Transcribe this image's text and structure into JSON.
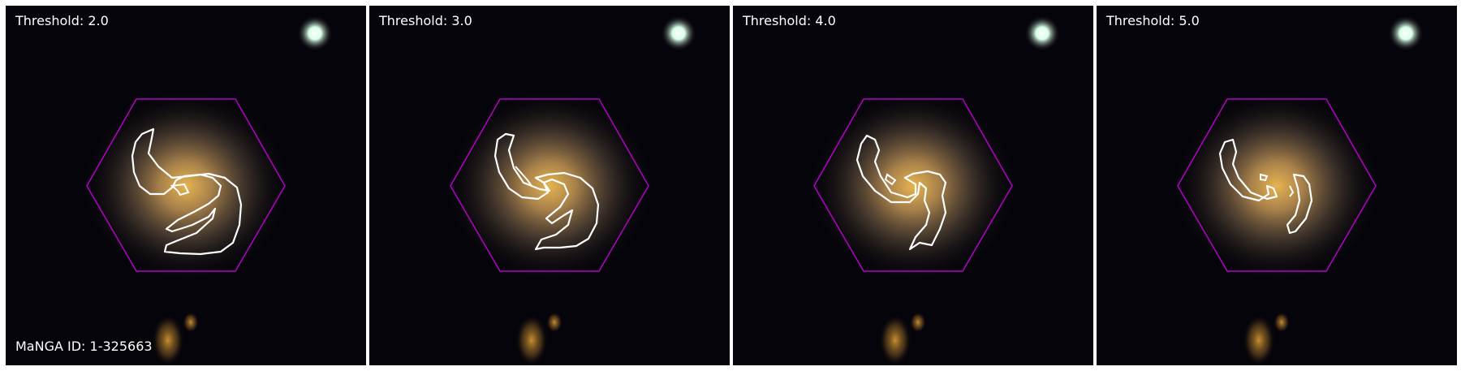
{
  "galaxy_id": "MaNGA ID: 1-325663",
  "panels": [
    {
      "threshold_label": "Threshold: 2.0"
    },
    {
      "threshold_label": "Threshold: 3.0"
    },
    {
      "threshold_label": "Threshold: 4.0"
    },
    {
      "threshold_label": "Threshold: 5.0"
    }
  ],
  "colors": {
    "background": "#05040a",
    "hexagon": "#b400c8",
    "contour": "#ffffff",
    "galaxy_core": "#e6b450",
    "star": "#e8fff4"
  }
}
